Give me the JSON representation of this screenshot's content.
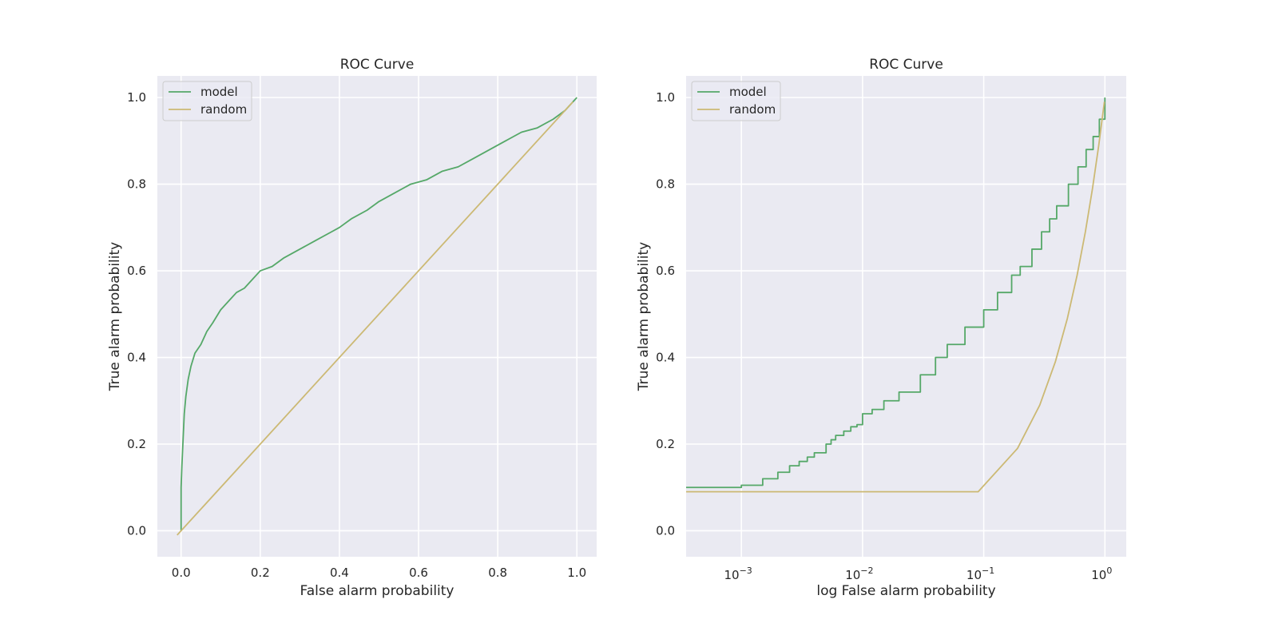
{
  "chart_data": [
    {
      "type": "line",
      "title": "ROC Curve",
      "xlabel": "False alarm probability",
      "ylabel": "True alarm probability",
      "xscale": "linear",
      "xlim": [
        -0.06,
        1.05
      ],
      "ylim": [
        -0.06,
        1.05
      ],
      "xticks": [
        0.0,
        0.2,
        0.4,
        0.6,
        0.8,
        1.0
      ],
      "xtick_labels": [
        "0.0",
        "0.2",
        "0.4",
        "0.6",
        "0.8",
        "1.0"
      ],
      "yticks": [
        0.0,
        0.2,
        0.4,
        0.6,
        0.8,
        1.0
      ],
      "ytick_labels": [
        "0.0",
        "0.2",
        "0.4",
        "0.6",
        "0.8",
        "1.0"
      ],
      "grid": true,
      "legend": "upper-left",
      "series": [
        {
          "name": "model",
          "color": "#55a868",
          "x": [
            0.0,
            0.0,
            0.002,
            0.005,
            0.008,
            0.012,
            0.018,
            0.025,
            0.035,
            0.05,
            0.065,
            0.08,
            0.1,
            0.12,
            0.14,
            0.16,
            0.18,
            0.2,
            0.23,
            0.26,
            0.3,
            0.34,
            0.38,
            0.4,
            0.43,
            0.47,
            0.5,
            0.54,
            0.58,
            0.62,
            0.66,
            0.7,
            0.74,
            0.78,
            0.82,
            0.86,
            0.9,
            0.94,
            0.97,
            0.99,
            1.0
          ],
          "y": [
            0.0,
            0.1,
            0.15,
            0.21,
            0.27,
            0.31,
            0.35,
            0.38,
            0.41,
            0.43,
            0.46,
            0.48,
            0.51,
            0.53,
            0.55,
            0.56,
            0.58,
            0.6,
            0.61,
            0.63,
            0.65,
            0.67,
            0.69,
            0.7,
            0.72,
            0.74,
            0.76,
            0.78,
            0.8,
            0.81,
            0.83,
            0.84,
            0.86,
            0.88,
            0.9,
            0.92,
            0.93,
            0.95,
            0.97,
            0.99,
            1.0
          ]
        },
        {
          "name": "random",
          "color": "#ccb974",
          "x": [
            -0.01,
            0.99
          ],
          "y": [
            -0.01,
            0.99
          ]
        }
      ]
    },
    {
      "type": "line",
      "title": "ROC Curve",
      "xlabel": "log False alarm probability",
      "ylabel": "True alarm probability",
      "xscale": "log",
      "xlim": [
        0.00035,
        1.5
      ],
      "ylim": [
        -0.06,
        1.05
      ],
      "xticks": [
        0.001,
        0.01,
        0.1,
        1.0
      ],
      "xtick_labels": [
        "10",
        "10",
        "10",
        "10"
      ],
      "xtick_exponents": [
        "−3",
        "−2",
        "−1",
        "0"
      ],
      "yticks": [
        0.0,
        0.2,
        0.4,
        0.6,
        0.8,
        1.0
      ],
      "ytick_labels": [
        "0.0",
        "0.2",
        "0.4",
        "0.6",
        "0.8",
        "1.0"
      ],
      "grid": true,
      "legend": "upper-left",
      "series": [
        {
          "name": "model",
          "color": "#55a868",
          "x": [
            0.00035,
            0.001,
            0.0015,
            0.002,
            0.0025,
            0.003,
            0.0035,
            0.004,
            0.005,
            0.0055,
            0.006,
            0.007,
            0.008,
            0.009,
            0.01,
            0.012,
            0.015,
            0.02,
            0.03,
            0.04,
            0.05,
            0.07,
            0.1,
            0.13,
            0.17,
            0.2,
            0.25,
            0.3,
            0.35,
            0.4,
            0.5,
            0.6,
            0.7,
            0.8,
            0.9,
            1.0
          ],
          "y": [
            0.1,
            0.105,
            0.12,
            0.135,
            0.15,
            0.16,
            0.17,
            0.18,
            0.2,
            0.21,
            0.22,
            0.23,
            0.24,
            0.245,
            0.27,
            0.28,
            0.3,
            0.32,
            0.36,
            0.4,
            0.43,
            0.47,
            0.51,
            0.55,
            0.59,
            0.61,
            0.65,
            0.69,
            0.72,
            0.75,
            0.8,
            0.84,
            0.88,
            0.91,
            0.95,
            1.0
          ]
        },
        {
          "name": "random",
          "color": "#ccb974",
          "x": [
            0.00035,
            0.09,
            0.19,
            0.29,
            0.39,
            0.49,
            0.59,
            0.69,
            0.79,
            0.89,
            0.99
          ],
          "y": [
            0.09,
            0.09,
            0.19,
            0.29,
            0.39,
            0.49,
            0.59,
            0.69,
            0.79,
            0.89,
            0.99
          ]
        }
      ]
    }
  ]
}
